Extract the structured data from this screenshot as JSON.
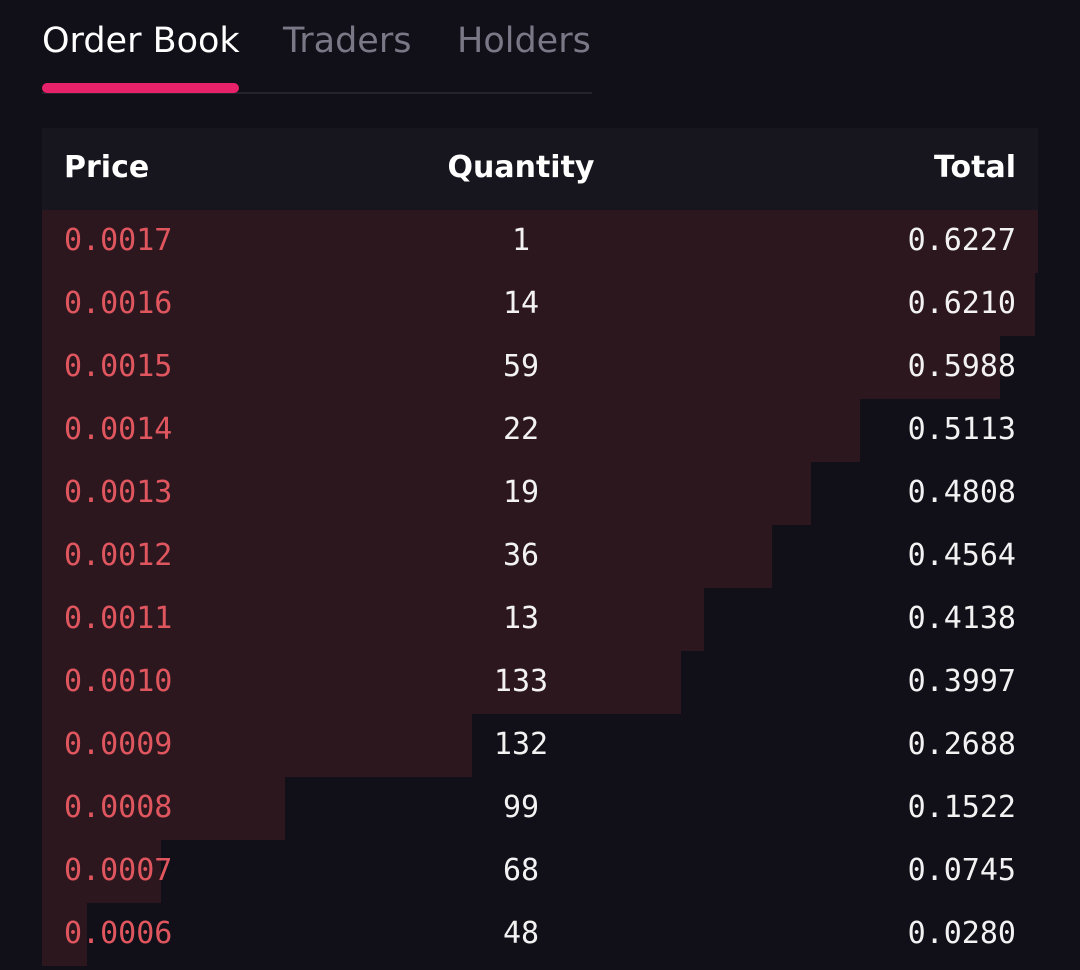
{
  "tabs": [
    {
      "label": "Order Book",
      "active": true
    },
    {
      "label": "Traders",
      "active": false
    },
    {
      "label": "Holders",
      "active": false
    }
  ],
  "columns": {
    "price": "Price",
    "quantity": "Quantity",
    "total": "Total"
  },
  "colors": {
    "accent": "#e8216b",
    "ask_price": "#e0565f",
    "depth_fill": "#2d171f",
    "background": "#110f17"
  },
  "asks": [
    {
      "price": "0.0017",
      "quantity": "1",
      "total": "0.6227"
    },
    {
      "price": "0.0016",
      "quantity": "14",
      "total": "0.6210"
    },
    {
      "price": "0.0015",
      "quantity": "59",
      "total": "0.5988"
    },
    {
      "price": "0.0014",
      "quantity": "22",
      "total": "0.5113"
    },
    {
      "price": "0.0013",
      "quantity": "19",
      "total": "0.4808"
    },
    {
      "price": "0.0012",
      "quantity": "36",
      "total": "0.4564"
    },
    {
      "price": "0.0011",
      "quantity": "13",
      "total": "0.4138"
    },
    {
      "price": "0.0010",
      "quantity": "133",
      "total": "0.3997"
    },
    {
      "price": "0.0009",
      "quantity": "132",
      "total": "0.2688"
    },
    {
      "price": "0.0008",
      "quantity": "99",
      "total": "0.1522"
    },
    {
      "price": "0.0007",
      "quantity": "68",
      "total": "0.0745"
    },
    {
      "price": "0.0006",
      "quantity": "48",
      "total": "0.0280"
    }
  ]
}
